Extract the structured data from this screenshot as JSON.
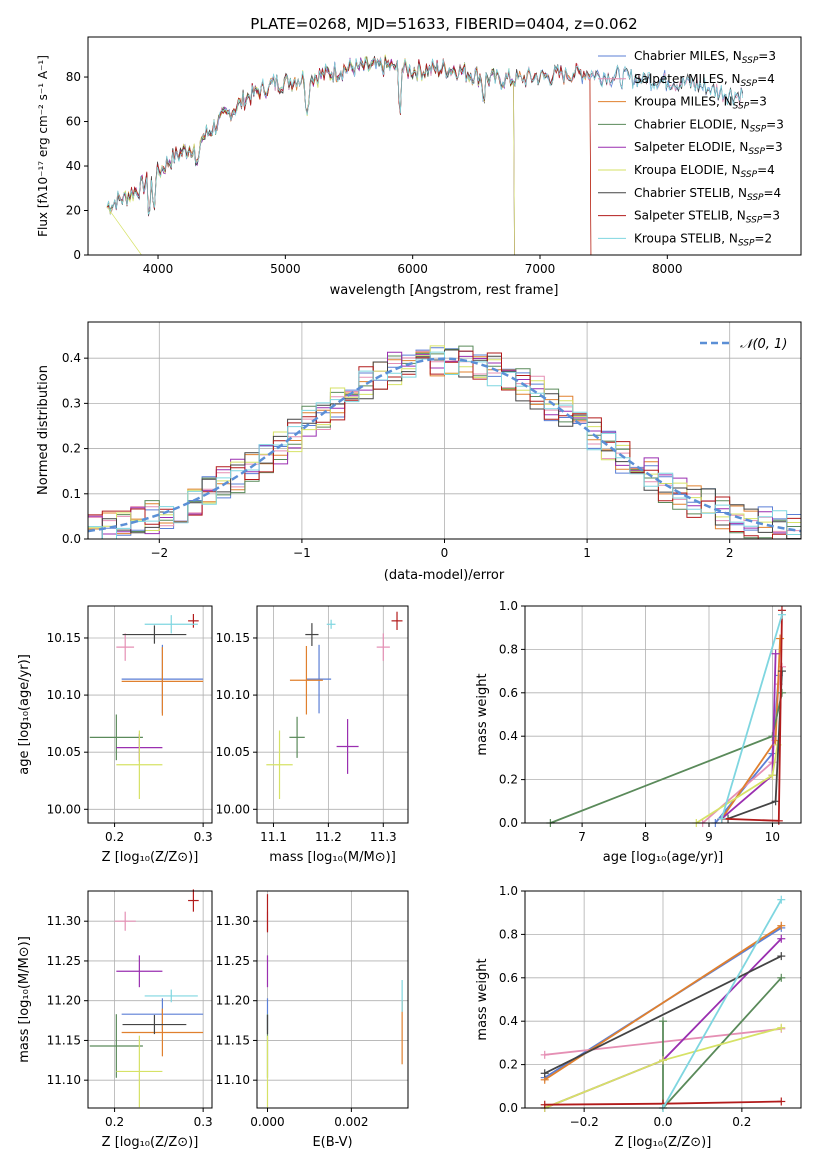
{
  "colors": {
    "chabrier_miles": "#5b7fd6",
    "salpeter_miles": "#e58fb4",
    "kroupa_miles": "#e0802e",
    "chabrier_elodie": "#5a8a5a",
    "salpeter_elodie": "#9a2fb0",
    "kroupa_elodie": "#d6e266",
    "chabrier_stelib": "#444444",
    "salpeter_stelib": "#b21b1b",
    "kroupa_stelib": "#7fd6e0",
    "normal_curve": "#5b8fd6"
  },
  "chart_data": [
    {
      "id": "spectrum",
      "type": "line",
      "title": "PLATE=0268, MJD=51633, FIBERID=0404, z=0.062",
      "xlabel": "wavelength [Angstrom, rest frame]",
      "ylabel": "Flux [fλ10⁻¹⁷ erg cm⁻² s⁻¹ A⁻¹]",
      "xlim": [
        3450,
        9050
      ],
      "ylim": [
        0,
        98
      ],
      "xticks": [
        "4000",
        "5000",
        "6000",
        "7000",
        "8000"
      ],
      "yticks": [
        "0",
        "20",
        "40",
        "60",
        "80"
      ],
      "legend_position": "right",
      "series": [
        {
          "name": "Chabrier MILES, N_SSP=3",
          "cut": null
        },
        {
          "name": "Salpeter MILES, N_SSP=4",
          "cut": null
        },
        {
          "name": "Kroupa MILES, N_SSP=3",
          "cut": 7400
        },
        {
          "name": "Chabrier ELODIE, N_SSP=3",
          "cut": 6800
        },
        {
          "name": "Salpeter ELODIE, N_SSP=3",
          "cut": 6800
        },
        {
          "name": "Kroupa ELODIE, N_SSP=4",
          "cut": 6800
        },
        {
          "name": "Chabrier STELIB, N_SSP=4",
          "cut": null
        },
        {
          "name": "Salpeter STELIB, N_SSP=3",
          "cut": 7400
        },
        {
          "name": "Kroupa STELIB, N_SSP=2",
          "cut": null
        }
      ],
      "legend_labels": [
        "Chabrier MILES, N",
        "Salpeter MILES, N",
        "Kroupa MILES, N",
        "Chabrier ELODIE, N",
        "Salpeter ELODIE, N",
        "Kroupa ELODIE, N",
        "Chabrier STELIB, N",
        "Salpeter STELIB, N",
        "Kroupa STELIB, N"
      ],
      "legend_subscript": "SSP",
      "legend_values": [
        "=3",
        "=4",
        "=3",
        "=3",
        "=3",
        "=4",
        "=4",
        "=3",
        "=2"
      ],
      "continuum_points": [
        [
          3600,
          22
        ],
        [
          3800,
          28
        ],
        [
          3950,
          34
        ],
        [
          4100,
          43
        ],
        [
          4300,
          50
        ],
        [
          4500,
          61
        ],
        [
          4700,
          71
        ],
        [
          4900,
          77
        ],
        [
          5100,
          79
        ],
        [
          5300,
          81
        ],
        [
          5500,
          84
        ],
        [
          5800,
          85
        ],
        [
          6000,
          83
        ],
        [
          6300,
          84
        ],
        [
          6600,
          79
        ],
        [
          6800,
          79
        ],
        [
          7000,
          80
        ],
        [
          7300,
          82
        ],
        [
          7600,
          80
        ],
        [
          7900,
          79
        ],
        [
          8200,
          77
        ],
        [
          8500,
          72
        ]
      ]
    },
    {
      "id": "residuals",
      "type": "histogram",
      "xlabel": "(data-model)/error",
      "ylabel": "Normed distribution",
      "xlim": [
        -2.5,
        2.5
      ],
      "ylim": [
        0,
        0.48
      ],
      "xticks": [
        "−2",
        "−1",
        "0",
        "1",
        "2"
      ],
      "yticks": [
        "0.0",
        "0.1",
        "0.2",
        "0.3",
        "0.4"
      ],
      "bin_width": 0.1,
      "legend_label": "𝒩(0, 1)",
      "grid": true
    },
    {
      "id": "age_vs_Z",
      "type": "scatter",
      "xlabel": "Z [log₁₀(Z/Z⊙)]",
      "ylabel": "age  [log₁₀(age/yr)]",
      "xlim": [
        0.17,
        0.31
      ],
      "ylim": [
        9.988,
        10.178
      ],
      "xticks": [
        {
          "v": 0.2,
          "t": "0.2"
        },
        {
          "v": 0.3,
          "t": "0.3"
        }
      ],
      "yticks": [
        {
          "v": 10.0,
          "t": "10.00"
        },
        {
          "v": 10.05,
          "t": "10.05"
        },
        {
          "v": 10.1,
          "t": "10.10"
        },
        {
          "v": 10.15,
          "t": "10.15"
        }
      ],
      "points": [
        {
          "s": "chabrier_miles",
          "x": 0.254,
          "y": 10.114,
          "xe": 0.046,
          "ye": 0.03
        },
        {
          "s": "salpeter_miles",
          "x": 0.212,
          "y": 10.142,
          "xe": 0.01,
          "ye": 0.012
        },
        {
          "s": "kroupa_miles",
          "x": 0.254,
          "y": 10.112,
          "xe": 0.046,
          "ye": 0.03
        },
        {
          "s": "chabrier_elodie",
          "x": 0.202,
          "y": 10.063,
          "xe": 0.03,
          "ye": 0.02
        },
        {
          "s": "salpeter_elodie",
          "x": 0.228,
          "y": 10.054,
          "xe": 0.026,
          "ye": 0.012
        },
        {
          "s": "kroupa_elodie",
          "x": 0.228,
          "y": 10.039,
          "xe": 0.026,
          "ye": 0.03
        },
        {
          "s": "chabrier_stelib",
          "x": 0.245,
          "y": 10.153,
          "xe": 0.036,
          "ye": 0.008
        },
        {
          "s": "salpeter_stelib",
          "x": 0.289,
          "y": 10.165,
          "xe": 0.006,
          "ye": 0.006
        },
        {
          "s": "kroupa_stelib",
          "x": 0.264,
          "y": 10.162,
          "xe": 0.03,
          "ye": 0.008
        }
      ]
    },
    {
      "id": "age_vs_mass",
      "type": "scatter",
      "xlabel": "mass [log₁₀(M/M⊙)]",
      "ylabel": "",
      "xlim": [
        11.07,
        11.345
      ],
      "ylim": [
        9.988,
        10.178
      ],
      "xticks": [
        {
          "v": 11.1,
          "t": "11.1"
        },
        {
          "v": 11.2,
          "t": "11.2"
        },
        {
          "v": 11.3,
          "t": "11.3"
        }
      ],
      "yticks": [
        {
          "v": 10.0,
          "t": "10.00"
        },
        {
          "v": 10.05,
          "t": "10.05"
        },
        {
          "v": 10.1,
          "t": "10.10"
        },
        {
          "v": 10.15,
          "t": "10.15"
        }
      ],
      "points": [
        {
          "s": "chabrier_miles",
          "x": 11.183,
          "y": 10.114,
          "xe": 0.022,
          "ye": 0.03
        },
        {
          "s": "salpeter_miles",
          "x": 11.3,
          "y": 10.142,
          "xe": 0.012,
          "ye": 0.012
        },
        {
          "s": "kroupa_miles",
          "x": 11.16,
          "y": 10.113,
          "xe": 0.03,
          "ye": 0.03
        },
        {
          "s": "chabrier_elodie",
          "x": 11.143,
          "y": 10.063,
          "xe": 0.014,
          "ye": 0.018
        },
        {
          "s": "salpeter_elodie",
          "x": 11.235,
          "y": 10.055,
          "xe": 0.02,
          "ye": 0.024
        },
        {
          "s": "kroupa_elodie",
          "x": 11.111,
          "y": 10.039,
          "xe": 0.024,
          "ye": 0.03
        },
        {
          "s": "chabrier_stelib",
          "x": 11.17,
          "y": 10.153,
          "xe": 0.012,
          "ye": 0.01
        },
        {
          "s": "salpeter_stelib",
          "x": 11.325,
          "y": 10.165,
          "xe": 0.01,
          "ye": 0.008
        },
        {
          "s": "kroupa_stelib",
          "x": 11.205,
          "y": 10.162,
          "xe": 0.008,
          "ye": 0.004
        }
      ]
    },
    {
      "id": "mass_vs_Z",
      "type": "scatter",
      "xlabel": "Z [log₁₀(Z/Z⊙)]",
      "ylabel": "mass [log₁₀(M/M⊙)]",
      "xlim": [
        0.17,
        0.31
      ],
      "ylim": [
        11.065,
        11.338
      ],
      "xticks": [
        {
          "v": 0.2,
          "t": "0.2"
        },
        {
          "v": 0.3,
          "t": "0.3"
        }
      ],
      "yticks": [
        {
          "v": 11.1,
          "t": "11.10"
        },
        {
          "v": 11.15,
          "t": "11.15"
        },
        {
          "v": 11.2,
          "t": "11.20"
        },
        {
          "v": 11.25,
          "t": "11.25"
        },
        {
          "v": 11.3,
          "t": "11.30"
        }
      ],
      "points": [
        {
          "s": "chabrier_miles",
          "x": 0.254,
          "y": 11.183,
          "xe": 0.046,
          "ye": 0.02
        },
        {
          "s": "salpeter_miles",
          "x": 0.212,
          "y": 11.3,
          "xe": 0.012,
          "ye": 0.012
        },
        {
          "s": "kroupa_miles",
          "x": 0.254,
          "y": 11.16,
          "xe": 0.046,
          "ye": 0.03
        },
        {
          "s": "chabrier_elodie",
          "x": 0.202,
          "y": 11.143,
          "xe": 0.03,
          "ye": 0.04
        },
        {
          "s": "salpeter_elodie",
          "x": 0.228,
          "y": 11.237,
          "xe": 0.026,
          "ye": 0.02
        },
        {
          "s": "kroupa_elodie",
          "x": 0.228,
          "y": 11.111,
          "xe": 0.026,
          "ye": 0.045
        },
        {
          "s": "chabrier_stelib",
          "x": 0.245,
          "y": 11.17,
          "xe": 0.036,
          "ye": 0.012
        },
        {
          "s": "salpeter_stelib",
          "x": 0.289,
          "y": 11.326,
          "xe": 0.006,
          "ye": 0.014
        },
        {
          "s": "kroupa_stelib",
          "x": 0.264,
          "y": 11.206,
          "xe": 0.03,
          "ye": 0.008
        }
      ]
    },
    {
      "id": "mass_vs_ebv",
      "type": "scatter",
      "xlabel": "E(B-V)",
      "ylabel": "",
      "xlim": [
        -0.00025,
        0.00335
      ],
      "ylim": [
        11.065,
        11.338
      ],
      "xticks": [
        {
          "v": 0.0,
          "t": "0.000"
        },
        {
          "v": 0.002,
          "t": "0.002"
        }
      ],
      "yticks": [
        {
          "v": 11.1,
          "t": "11.10"
        },
        {
          "v": 11.15,
          "t": "11.15"
        },
        {
          "v": 11.2,
          "t": "11.20"
        },
        {
          "v": 11.25,
          "t": "11.25"
        },
        {
          "v": 11.3,
          "t": "11.30"
        }
      ],
      "points": [
        {
          "s": "chabrier_miles",
          "x": 0.0,
          "y": 11.183,
          "xe": 0.0,
          "ye": 0.02
        },
        {
          "s": "salpeter_miles",
          "x": 0.0,
          "y": 11.3,
          "xe": 0.0,
          "ye": 0.012
        },
        {
          "s": "kroupa_miles",
          "x": 0.00321,
          "y": 11.16,
          "xe": 0.0,
          "ye": 0.04
        },
        {
          "s": "chabrier_elodie",
          "x": 0.0,
          "y": 11.143,
          "xe": 0.0,
          "ye": 0.04
        },
        {
          "s": "salpeter_elodie",
          "x": 0.0,
          "y": 11.237,
          "xe": 0.0,
          "ye": 0.02
        },
        {
          "s": "kroupa_elodie",
          "x": 0.0,
          "y": 11.111,
          "xe": 0.0,
          "ye": 0.045
        },
        {
          "s": "chabrier_stelib",
          "x": 0.0,
          "y": 11.17,
          "xe": 0.0,
          "ye": 0.012
        },
        {
          "s": "salpeter_stelib",
          "x": 0.0,
          "y": 11.31,
          "xe": 0.0,
          "ye": 0.024
        },
        {
          "s": "kroupa_stelib",
          "x": 0.00321,
          "y": 11.206,
          "xe": 0.0,
          "ye": 0.02
        }
      ]
    },
    {
      "id": "weight_vs_age",
      "type": "line",
      "xlabel": "age  [log₁₀(age/yr)]",
      "ylabel": "mass weight",
      "xlim": [
        6.1,
        10.45
      ],
      "ylim": [
        0,
        1.0
      ],
      "xticks": [
        {
          "v": 7,
          "t": "7"
        },
        {
          "v": 8,
          "t": "8"
        },
        {
          "v": 9,
          "t": "9"
        },
        {
          "v": 10,
          "t": "10"
        }
      ],
      "yticks": [
        {
          "v": 0,
          "t": "0.0"
        },
        {
          "v": 0.2,
          "t": "0.2"
        },
        {
          "v": 0.4,
          "t": "0.4"
        },
        {
          "v": 0.6,
          "t": "0.6"
        },
        {
          "v": 0.8,
          "t": "0.8"
        },
        {
          "v": 1.0,
          "t": "1.0"
        }
      ],
      "series": [
        {
          "s": "chabrier_miles",
          "pts": [
            [
              9.1,
              0.0
            ],
            [
              10.0,
              0.32
            ],
            [
              10.1,
              0.68
            ]
          ]
        },
        {
          "s": "salpeter_miles",
          "pts": [
            [
              8.9,
              0.0
            ],
            [
              10.0,
              0.28
            ],
            [
              10.1,
              0.64
            ],
            [
              10.15,
              0.72
            ]
          ]
        },
        {
          "s": "kroupa_miles",
          "pts": [
            [
              9.2,
              0.02
            ],
            [
              10.05,
              0.38
            ],
            [
              10.12,
              0.85
            ]
          ]
        },
        {
          "s": "chabrier_elodie",
          "pts": [
            [
              6.5,
              0.0
            ],
            [
              10.0,
              0.4
            ],
            [
              10.15,
              0.6
            ]
          ]
        },
        {
          "s": "salpeter_elodie",
          "pts": [
            [
              9.2,
              0.02
            ],
            [
              10.0,
              0.22
            ],
            [
              10.05,
              0.78
            ]
          ]
        },
        {
          "s": "kroupa_elodie",
          "pts": [
            [
              8.8,
              0.0
            ],
            [
              10.0,
              0.22
            ],
            [
              10.08,
              0.36
            ]
          ]
        },
        {
          "s": "chabrier_stelib",
          "pts": [
            [
              9.3,
              0.02
            ],
            [
              10.05,
              0.1
            ],
            [
              10.15,
              0.7
            ]
          ]
        },
        {
          "s": "salpeter_stelib",
          "pts": [
            [
              9.2,
              0.02
            ],
            [
              10.1,
              0.01
            ],
            [
              10.15,
              0.98
            ]
          ]
        },
        {
          "s": "kroupa_stelib",
          "pts": [
            [
              9.2,
              0.02
            ],
            [
              10.15,
              0.96
            ]
          ]
        }
      ]
    },
    {
      "id": "weight_vs_Z",
      "type": "line",
      "xlabel": "Z [log₁₀(Z/Z⊙)]",
      "ylabel": "mass weight",
      "xlim": [
        -0.35,
        0.35
      ],
      "ylim": [
        0,
        1.0
      ],
      "xticks": [
        {
          "v": -0.2,
          "t": "−0.2"
        },
        {
          "v": 0.0,
          "t": "0.0"
        },
        {
          "v": 0.2,
          "t": "0.2"
        }
      ],
      "yticks": [
        {
          "v": 0,
          "t": "0.0"
        },
        {
          "v": 0.2,
          "t": "0.2"
        },
        {
          "v": 0.4,
          "t": "0.4"
        },
        {
          "v": 0.6,
          "t": "0.6"
        },
        {
          "v": 0.8,
          "t": "0.8"
        },
        {
          "v": 1.0,
          "t": "1.0"
        }
      ],
      "series": [
        {
          "s": "chabrier_miles",
          "pts": [
            [
              -0.3,
              0.14
            ],
            [
              0.3,
              0.83
            ]
          ]
        },
        {
          "s": "salpeter_miles",
          "pts": [
            [
              -0.3,
              0.245
            ],
            [
              0.3,
              0.365
            ]
          ]
        },
        {
          "s": "kroupa_miles",
          "pts": [
            [
              -0.3,
              0.13
            ],
            [
              0.3,
              0.84
            ]
          ]
        },
        {
          "s": "chabrier_elodie",
          "pts": [
            [
              0.0,
              0.4
            ],
            [
              0.0,
              0.0
            ],
            [
              0.3,
              0.6
            ]
          ]
        },
        {
          "s": "salpeter_elodie",
          "pts": [
            [
              -0.3,
              0.0
            ],
            [
              0.0,
              0.22
            ],
            [
              0.3,
              0.78
            ]
          ]
        },
        {
          "s": "kroupa_elodie",
          "pts": [
            [
              -0.3,
              0.0
            ],
            [
              0.0,
              0.22
            ],
            [
              0.3,
              0.37
            ]
          ]
        },
        {
          "s": "chabrier_stelib",
          "pts": [
            [
              -0.3,
              0.16
            ],
            [
              0.3,
              0.7
            ]
          ]
        },
        {
          "s": "salpeter_stelib",
          "pts": [
            [
              -0.3,
              0.015
            ],
            [
              0.0,
              0.02
            ],
            [
              0.3,
              0.03
            ]
          ]
        },
        {
          "s": "kroupa_stelib",
          "pts": [
            [
              0.0,
              0.0
            ],
            [
              0.3,
              0.96
            ]
          ]
        }
      ]
    }
  ]
}
